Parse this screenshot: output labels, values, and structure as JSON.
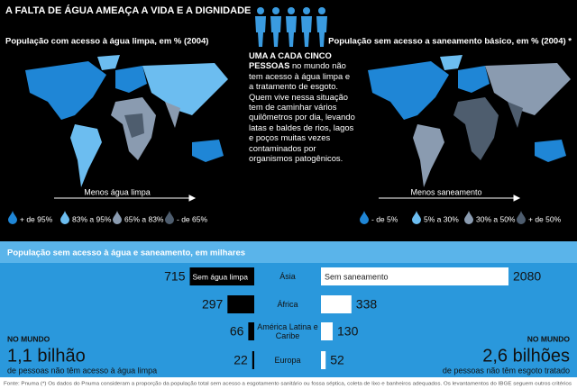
{
  "header": {
    "title": "A FALTA DE ÁGUA AMEAÇA A VIDA E A DIGNIDADE"
  },
  "left_map": {
    "title": "População com acesso à água limpa, em % (2004)",
    "arrow_label": "Menos água limpa",
    "legend": [
      {
        "label": "+ de 95%",
        "color": "#1f86d6"
      },
      {
        "label": "83% a 95%",
        "color": "#6cbdf0"
      },
      {
        "label": "65% a 83%",
        "color": "#8a9bb0"
      },
      {
        "label": "- de 65%",
        "color": "#4e5d6e"
      }
    ]
  },
  "center": {
    "lead": "UMA A CADA CINCO PESSOAS",
    "text": "no mundo não tem acesso à água limpa e a tratamento de esgoto. Quem vive nessa situação tem de caminhar vários quilômetros por dia, levando latas e baldes de rios, lagos e poços muitas vezes contaminados por organismos patogênicos."
  },
  "right_map": {
    "title": "População sem acesso a saneamento básico, em % (2004) *",
    "arrow_label": "Menos saneamento",
    "legend": [
      {
        "label": "- de 5%",
        "color": "#1f86d6"
      },
      {
        "label": "5% a 30%",
        "color": "#6cbdf0"
      },
      {
        "label": "30% a 50%",
        "color": "#8a9bb0"
      },
      {
        "label": "+ de 50%",
        "color": "#4e5d6e"
      }
    ]
  },
  "chart_data": {
    "type": "butterfly",
    "title": "População sem acesso à água e saneamento, em milhares",
    "categories": [
      "Ásia",
      "África",
      "América Latina e Caribe",
      "Europa"
    ],
    "series": [
      {
        "name": "Sem água limpa",
        "color": "#000000",
        "values": [
          715,
          297,
          66,
          22
        ]
      },
      {
        "name": "Sem saneamento",
        "color": "#ffffff",
        "values": [
          2080,
          338,
          130,
          52
        ]
      }
    ]
  },
  "notes": {
    "left": {
      "label": "NO MUNDO",
      "figure": "1,1 bilhão",
      "text": "de pessoas não têm acesso à água limpa"
    },
    "right": {
      "label": "NO MUNDO",
      "figure": "2,6 bilhões",
      "text": "de pessoas não têm esgoto tratado"
    }
  },
  "footer": "Fonte: Pnuma   (*) Os dados do Pnuma consideram a proporção da população total sem acesso a esgotamento sanitário ou fossa séptica, coleta de lixo e banheiros adequados. Os levantamentos do IBGE seguem outros critérios"
}
